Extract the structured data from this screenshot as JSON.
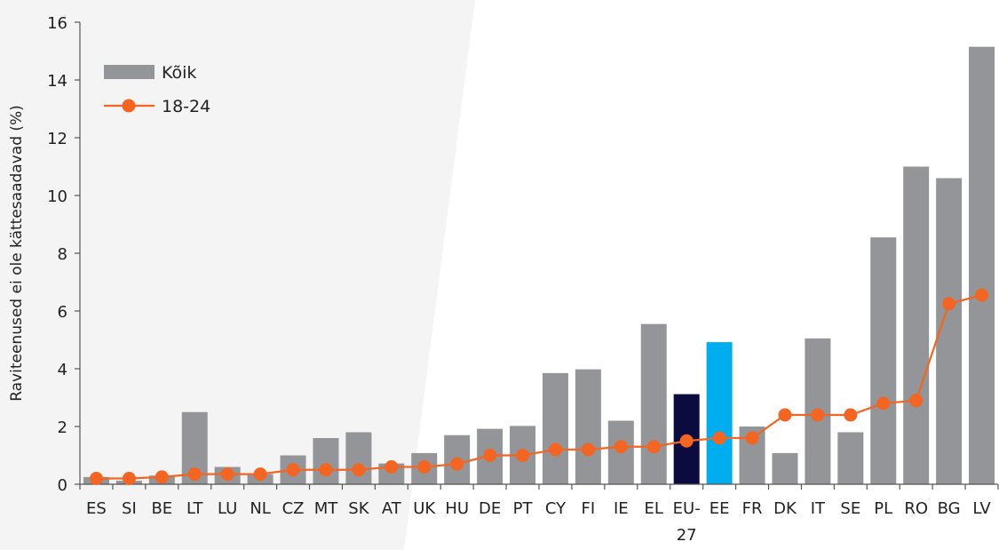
{
  "chart_data": {
    "type": "bar",
    "ylabel": "Raviteenused ei ole kättesaadavad (%)",
    "ylim": [
      0,
      16
    ],
    "yticks": [
      0,
      2,
      4,
      6,
      8,
      10,
      12,
      14,
      16
    ],
    "grid": false,
    "legend_position": "top-left",
    "categories": [
      "ES",
      "SI",
      "BE",
      "LT",
      "LU",
      "NL",
      "CZ",
      "MT",
      "SK",
      "AT",
      "UK",
      "HU",
      "DE",
      "PT",
      "CY",
      "FI",
      "IE",
      "EL",
      "EU-27",
      "EE",
      "FR",
      "DK",
      "IT",
      "SE",
      "PL",
      "RO",
      "BG",
      "LV"
    ],
    "series": [
      {
        "name": "Kõik",
        "type": "bar",
        "color": "#939598",
        "values": [
          0.25,
          0.12,
          0.3,
          2.5,
          0.6,
          0.35,
          1.0,
          1.6,
          1.8,
          0.72,
          1.08,
          1.7,
          1.92,
          2.02,
          3.85,
          3.98,
          2.2,
          5.55,
          3.12,
          4.92,
          2.0,
          1.08,
          5.05,
          1.8,
          8.55,
          11.0,
          10.6,
          15.15
        ]
      },
      {
        "name": "18-24",
        "type": "line",
        "color": "#F26522",
        "values": [
          0.2,
          0.2,
          0.25,
          0.35,
          0.35,
          0.35,
          0.5,
          0.5,
          0.5,
          0.6,
          0.6,
          0.7,
          1.0,
          1.0,
          1.2,
          1.2,
          1.3,
          1.3,
          1.5,
          1.6,
          1.6,
          2.4,
          2.4,
          2.4,
          2.8,
          2.9,
          6.25,
          6.55
        ]
      }
    ],
    "highlight_colors": {
      "EU-27": "#0C0B3F",
      "EE": "#00AEEF"
    },
    "background_panel_color": "#F4F4F4"
  }
}
